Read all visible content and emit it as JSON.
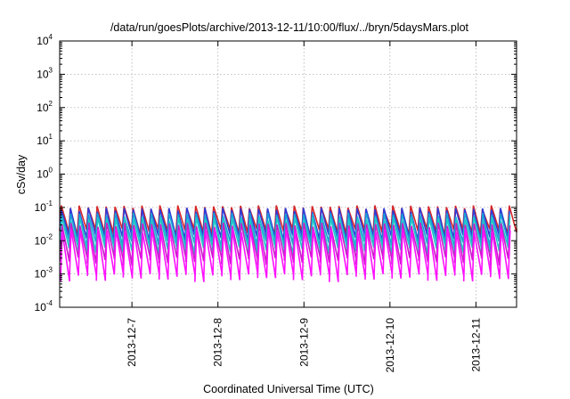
{
  "chart_data": {
    "type": "line",
    "title": "/data/run/goesPlots/archive/2013-12-11/10:00/flux/../bryn/5daysMars.plot",
    "xlabel": "Coordinated Universal Time (UTC)",
    "ylabel": "cSv/day",
    "yscale": "log",
    "ylim": [
      0.0001,
      10000
    ],
    "xlim": [
      "2013-12-06 03:50",
      "2013-12-11 11:20"
    ],
    "grid": true,
    "legend": "none",
    "y_ticks": [
      {
        "base": "10",
        "exp": "-4",
        "value": 0.0001
      },
      {
        "base": "10",
        "exp": "-3",
        "value": 0.001
      },
      {
        "base": "10",
        "exp": "-2",
        "value": 0.01
      },
      {
        "base": "10",
        "exp": "-1",
        "value": 0.1
      },
      {
        "base": "10",
        "exp": "0",
        "value": 1
      },
      {
        "base": "10",
        "exp": "1",
        "value": 10
      },
      {
        "base": "10",
        "exp": "2",
        "value": 100
      },
      {
        "base": "10",
        "exp": "3",
        "value": 1000
      },
      {
        "base": "10",
        "exp": "4",
        "value": 10000
      }
    ],
    "x_ticks": [
      {
        "label": "2013-12-7",
        "value": "2013-12-07 00:00"
      },
      {
        "label": "2013-12-8",
        "value": "2013-12-08 00:00"
      },
      {
        "label": "2013-12-9",
        "value": "2013-12-09 00:00"
      },
      {
        "label": "2013-12-10",
        "value": "2013-12-10 00:00"
      },
      {
        "label": "2013-12-11",
        "value": "2013-12-11 00:00"
      }
    ],
    "cycle_hours": 2.5,
    "series": [
      {
        "color": "#d62728",
        "peak": 0.1,
        "trough": 0.018
      },
      {
        "color": "#2f3bd8",
        "peak": 0.085,
        "trough": 0.012
      },
      {
        "color": "#1aa0d8",
        "peak": 0.06,
        "trough": 0.008
      },
      {
        "color": "#20c8c8",
        "peak": 0.045,
        "trough": 0.005
      },
      {
        "color": "#c81ec8",
        "peak": 0.03,
        "trough": 0.0025
      },
      {
        "color": "#ff10ff",
        "peak": 0.02,
        "trough": 0.0008
      }
    ]
  }
}
